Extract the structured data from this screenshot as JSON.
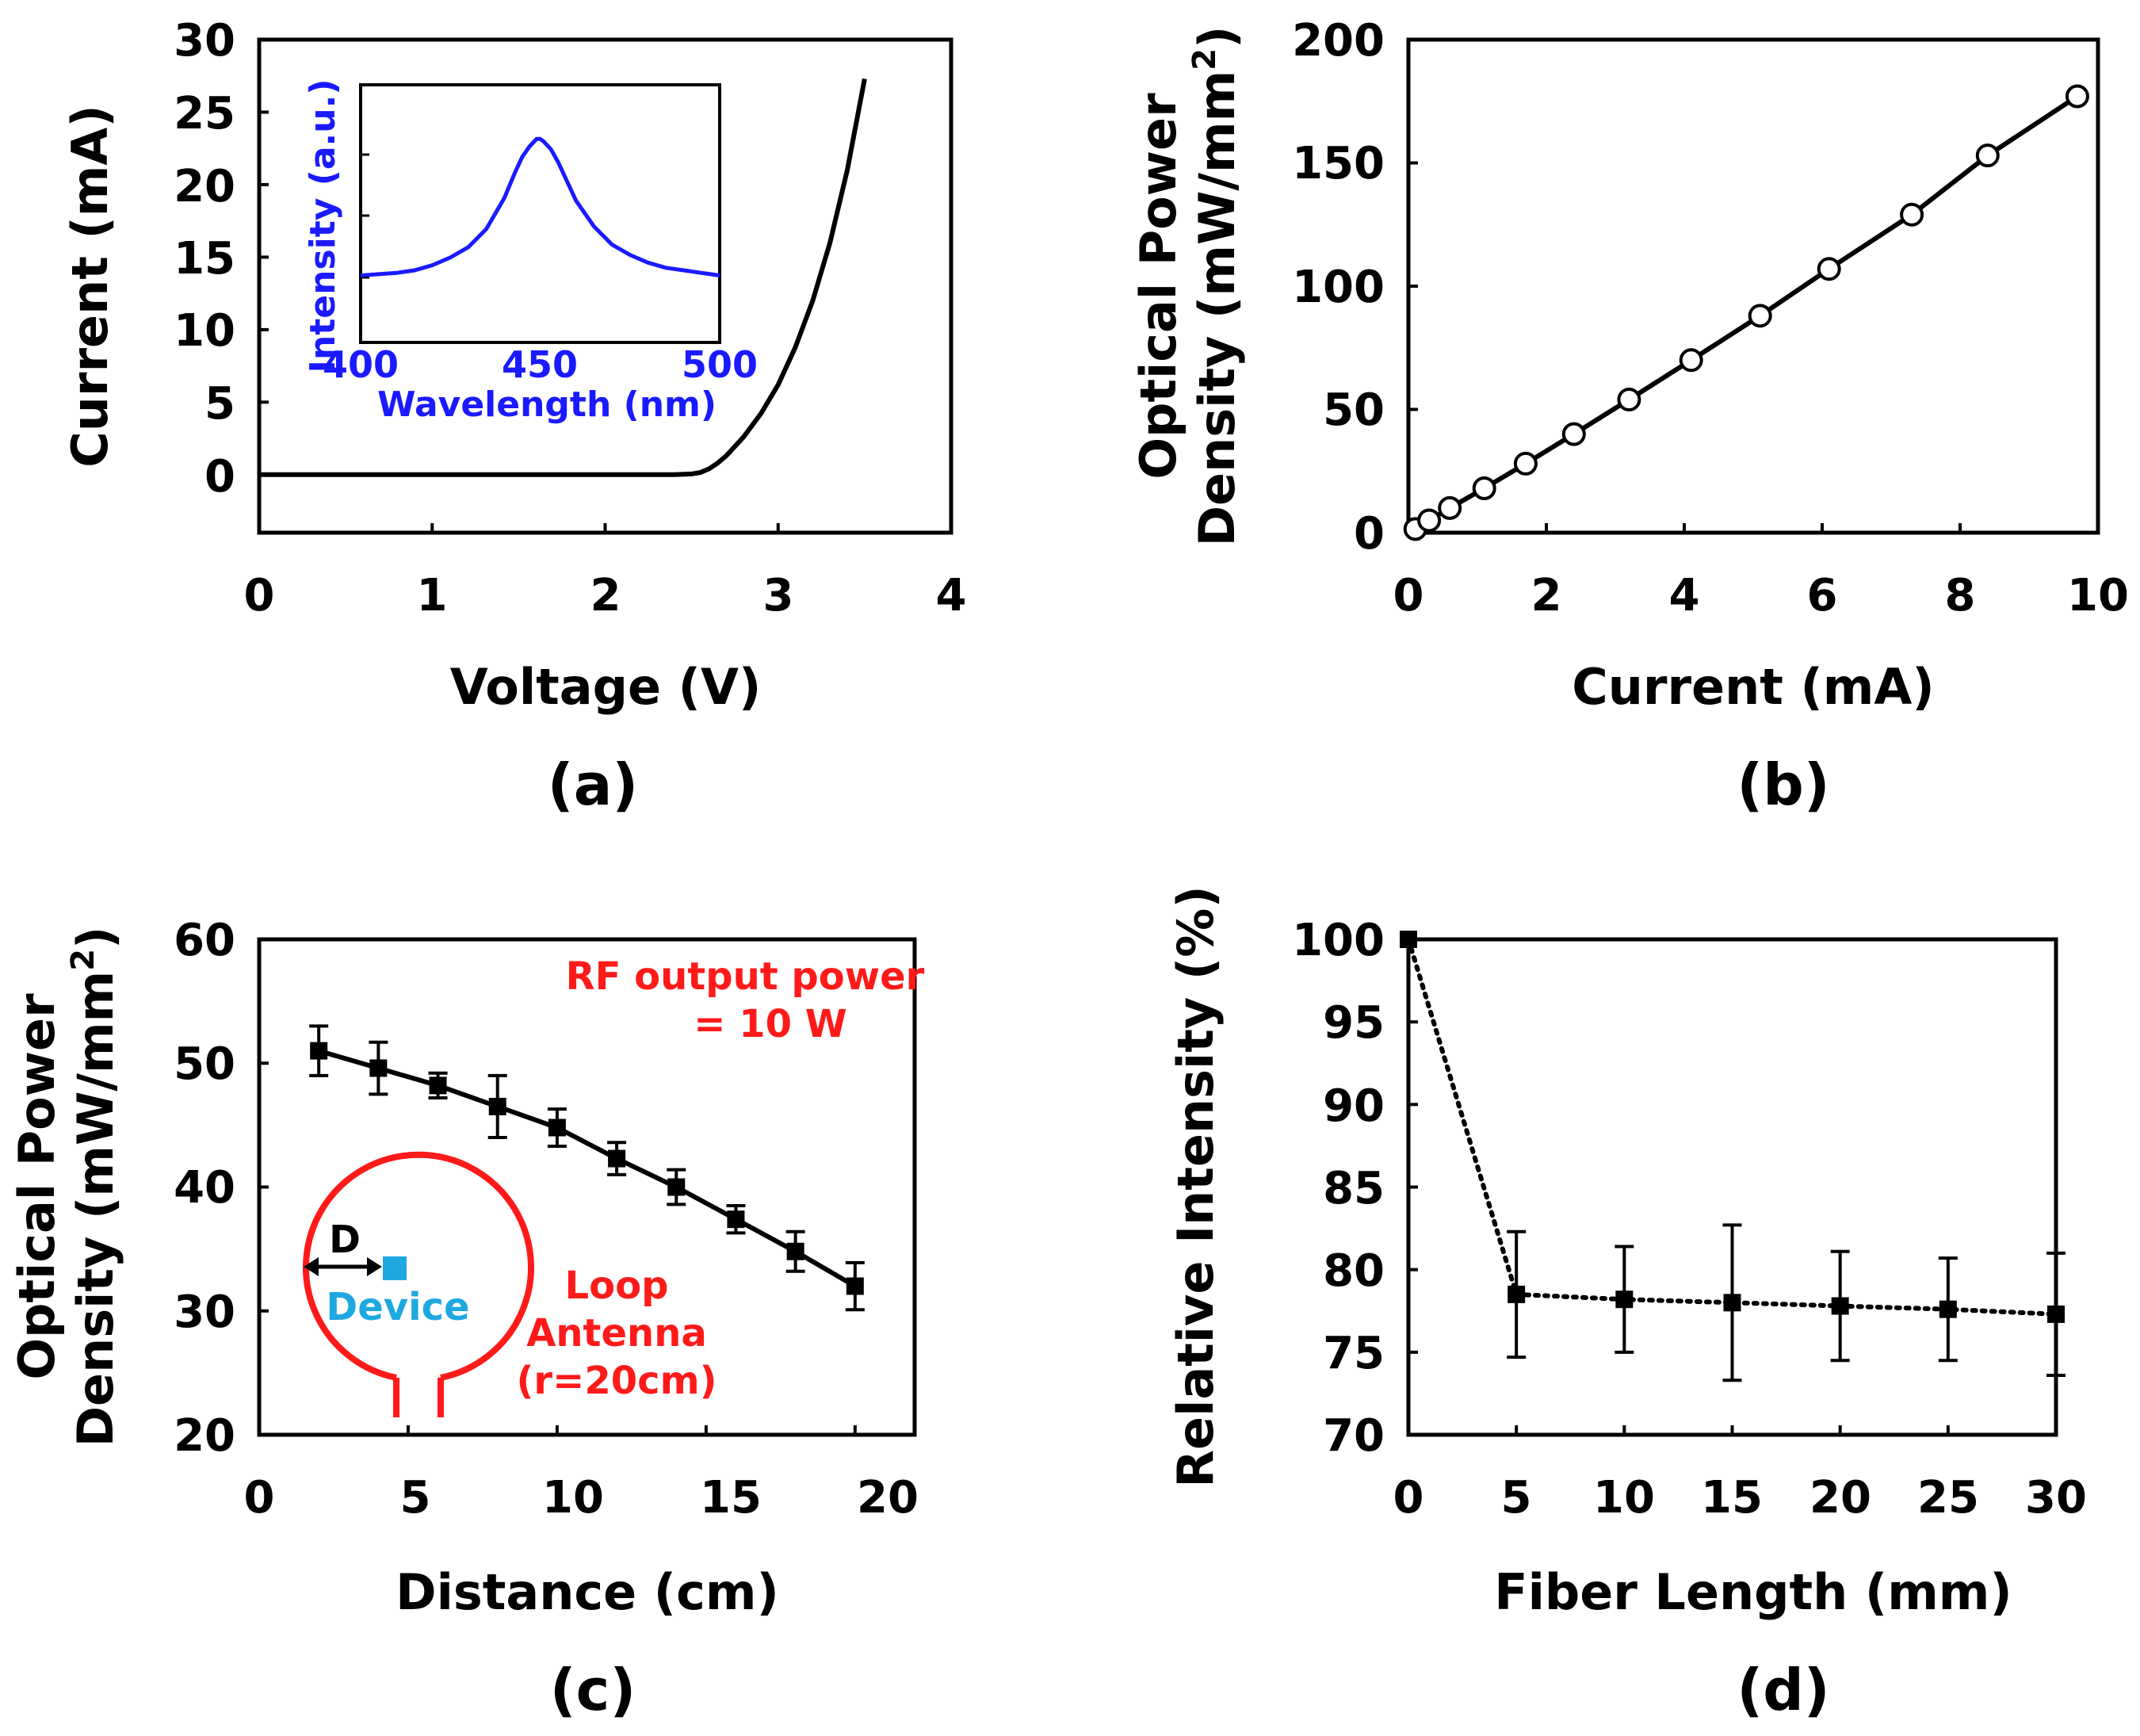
{
  "colors": {
    "axis": "#000000",
    "inset_spectrum": "#1a1aff",
    "annotation_red": "#ff1a1a",
    "device_cyan": "#1ea8e0"
  },
  "chart_data": [
    {
      "id": "a",
      "panel_label": "(a)",
      "type": "line",
      "xlabel": "Voltage (V)",
      "ylabel": "Current (mA)",
      "xlim": [
        0,
        4
      ],
      "ylim": [
        -4,
        30
      ],
      "xticks": [
        "0",
        "1",
        "2",
        "3",
        "4"
      ],
      "yticks": [
        "0",
        "5",
        "10",
        "15",
        "20",
        "25",
        "30"
      ],
      "series": [
        {
          "x": [
            0,
            0.5,
            1.0,
            1.5,
            2.0,
            2.4,
            2.5,
            2.55,
            2.6,
            2.65,
            2.7,
            2.8,
            2.9,
            3.0,
            3.1,
            3.2,
            3.3,
            3.4,
            3.5
          ],
          "y": [
            0,
            0,
            0,
            0,
            0,
            0,
            0.05,
            0.15,
            0.4,
            0.8,
            1.3,
            2.6,
            4.2,
            6.2,
            8.8,
            12.0,
            16.0,
            21.0,
            27.3
          ]
        }
      ],
      "inset": {
        "type": "line",
        "xlabel": "Wavelength (nm)",
        "ylabel": "Intensity (a.u.)",
        "xlim": [
          400,
          500
        ],
        "ylim": [
          0,
          1
        ],
        "xticks": [
          "400",
          "450",
          "500"
        ],
        "series": [
          {
            "x": [
              400,
              405,
              410,
              415,
              420,
              425,
              430,
              435,
              440,
              443,
              445,
              447,
              449,
              450,
              451,
              453,
              455,
              457,
              460,
              465,
              470,
              475,
              480,
              485,
              490,
              495,
              500
            ],
            "y": [
              0.26,
              0.265,
              0.27,
              0.28,
              0.3,
              0.33,
              0.37,
              0.44,
              0.56,
              0.66,
              0.72,
              0.76,
              0.79,
              0.79,
              0.78,
              0.75,
              0.7,
              0.64,
              0.55,
              0.45,
              0.38,
              0.34,
              0.31,
              0.29,
              0.28,
              0.27,
              0.26
            ]
          }
        ]
      }
    },
    {
      "id": "b",
      "panel_label": "(b)",
      "type": "line",
      "xlabel": "Current (mA)",
      "ylabel": [
        "Optical Power",
        "Density (mW/mm",
        "2",
        ")"
      ],
      "xlim": [
        0,
        10
      ],
      "ylim": [
        0,
        200
      ],
      "xticks": [
        "0",
        "2",
        "4",
        "6",
        "8",
        "10"
      ],
      "yticks": [
        "0",
        "50",
        "100",
        "150",
        "200"
      ],
      "marker": "open-circle",
      "series": [
        {
          "x": [
            0.1,
            0.3,
            0.6,
            1.1,
            1.7,
            2.4,
            3.2,
            4.1,
            5.1,
            6.1,
            7.3,
            8.4,
            9.7
          ],
          "y": [
            1.5,
            5,
            10,
            18,
            28,
            40,
            54,
            70,
            88,
            107,
            129,
            153,
            177
          ]
        }
      ]
    },
    {
      "id": "c",
      "panel_label": "(c)",
      "type": "line",
      "xlabel": "Distance (cm)",
      "ylabel": [
        "Optical Power",
        "Density (mW/mm",
        "2",
        ")"
      ],
      "xlim": [
        0,
        22
      ],
      "ylim": [
        20,
        60
      ],
      "xticks": [
        "0",
        "5",
        "10",
        "15",
        "20"
      ],
      "yticks": [
        "20",
        "30",
        "40",
        "50",
        "60"
      ],
      "marker": "filled-square",
      "series": [
        {
          "x": [
            2,
            4,
            6,
            8,
            10,
            12,
            14,
            16,
            18,
            20
          ],
          "y": [
            51,
            49.6,
            48.2,
            46.5,
            44.8,
            42.3,
            40,
            37.4,
            34.8,
            32
          ],
          "error": [
            2.0,
            2.1,
            1.0,
            2.5,
            1.5,
            1.3,
            1.4,
            1.1,
            1.6,
            1.9
          ]
        }
      ],
      "annotations": {
        "rf_line1": "RF output power",
        "rf_line2": "= 10 W",
        "d_label": "D",
        "device_label": "Device",
        "antenna_line1": "Loop",
        "antenna_line2": "Antenna",
        "antenna_line3": "(r=20cm)"
      }
    },
    {
      "id": "d",
      "panel_label": "(d)",
      "type": "line",
      "xlabel": "Fiber Length (mm)",
      "ylabel": "Relative Intensity (%)",
      "xlim": [
        0,
        30
      ],
      "ylim": [
        70,
        100
      ],
      "xticks": [
        "0",
        "5",
        "10",
        "15",
        "20",
        "25",
        "30"
      ],
      "yticks": [
        "70",
        "75",
        "80",
        "85",
        "90",
        "95",
        "100"
      ],
      "marker": "filled-square",
      "line_style": "dotted",
      "series": [
        {
          "x": [
            0,
            5,
            10,
            15,
            20,
            25,
            30
          ],
          "y": [
            100,
            78.5,
            78.2,
            78,
            77.8,
            77.6,
            77.3
          ],
          "error": [
            0,
            3.8,
            3.2,
            4.7,
            3.3,
            3.1,
            3.7
          ]
        }
      ]
    }
  ]
}
